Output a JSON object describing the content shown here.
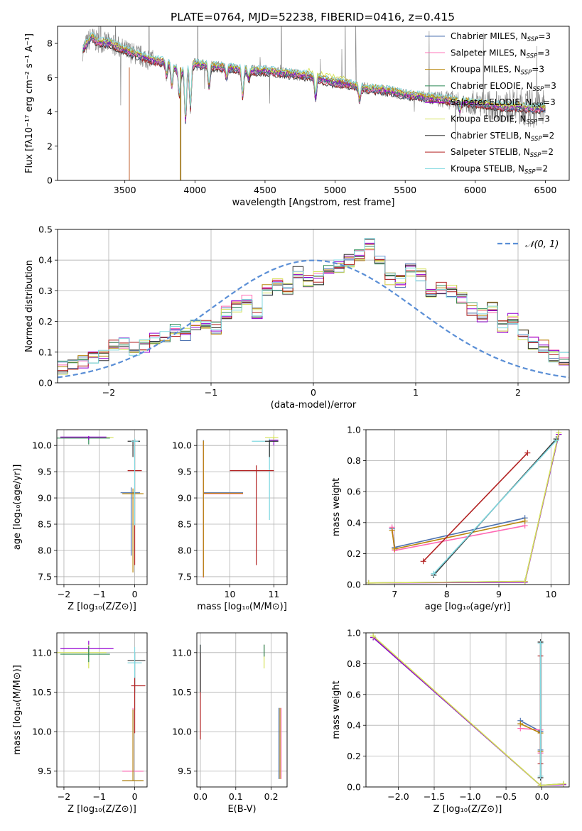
{
  "figure": {
    "title": "PLATE=0764, MJD=52238, FIBERID=0416, z=0.415"
  },
  "series_colors": {
    "chabrier_miles": "#4c72b0",
    "salpeter_miles": "#ff69b4",
    "kroupa_miles": "#b8860b",
    "chabrier_elodie": "#2e8b57",
    "salpeter_elodie": "#9400d3",
    "kroupa_elodie": "#d4e157",
    "chabrier_stelib": "#333333",
    "salpeter_stelib": "#b22222",
    "kroupa_stelib": "#80d8e0"
  },
  "chart_data": [
    {
      "id": "spectrum",
      "type": "line",
      "xlabel": "wavelength [Angstrom, rest frame]",
      "ylabel": "Flux [fλ10⁻¹⁷ erg cm⁻² s⁻¹ A⁻¹]",
      "xlim": [
        3020,
        6670
      ],
      "ylim": [
        0,
        9
      ],
      "xticks": [
        3500,
        4000,
        4500,
        5000,
        5500,
        6000,
        6500
      ],
      "yticks": [
        0,
        2,
        4,
        6,
        8
      ],
      "grid": false,
      "legend_position": "top-right",
      "legend": [
        {
          "label": "Chabrier MILES, N_SSP=3",
          "main": "Chabrier MILES, N",
          "sub": "SSP",
          "tail": "=3",
          "color": "#4c72b0"
        },
        {
          "label": "Salpeter MILES, N_SSP=3",
          "main": "Salpeter MILES, N",
          "sub": "SSP",
          "tail": "=3",
          "color": "#ff69b4"
        },
        {
          "label": "Kroupa MILES, N_SSP=3",
          "main": "Kroupa MILES, N",
          "sub": "SSP",
          "tail": "=3",
          "color": "#b8860b"
        },
        {
          "label": "Chabrier ELODIE, N_SSP=3",
          "main": "Chabrier ELODIE, N",
          "sub": "SSP",
          "tail": "=3",
          "color": "#2e8b57"
        },
        {
          "label": "Salpeter ELODIE, N_SSP=3",
          "main": "Salpeter ELODIE, N",
          "sub": "SSP",
          "tail": "=3",
          "color": "#9400d3"
        },
        {
          "label": "Kroupa ELODIE, N_SSP=3",
          "main": "Kroupa ELODIE, N",
          "sub": "SSP",
          "tail": "=3",
          "color": "#d4e157"
        },
        {
          "label": "Chabrier STELIB, N_SSP=2",
          "main": "Chabrier STELIB, N",
          "sub": "SSP",
          "tail": "=2",
          "color": "#333333"
        },
        {
          "label": "Salpeter STELIB, N_SSP=2",
          "main": "Salpeter STELIB, N",
          "sub": "SSP",
          "tail": "=2",
          "color": "#b22222"
        },
        {
          "label": "Kroupa STELIB, N_SSP=2",
          "main": "Kroupa STELIB, N",
          "sub": "SSP",
          "tail": "=2",
          "color": "#80d8e0"
        }
      ],
      "data_envelope": {
        "x": [
          3200,
          3260,
          3300,
          3400,
          3500,
          3600,
          3700,
          3800,
          3900,
          4000,
          4100,
          4200,
          4300,
          4400,
          4500,
          4600,
          4700,
          4800,
          4900,
          5000,
          5100,
          5200,
          5300,
          5400,
          5500,
          5600,
          5700,
          5800,
          5900,
          6000,
          6100,
          6200,
          6300,
          6400,
          6500
        ],
        "y": [
          7.6,
          8.4,
          8.1,
          8.0,
          7.6,
          7.3,
          7.0,
          6.9,
          6.3,
          6.8,
          6.7,
          6.6,
          6.5,
          6.4,
          6.4,
          6.3,
          6.2,
          6.1,
          5.9,
          5.7,
          5.6,
          5.4,
          5.3,
          5.2,
          5.0,
          4.9,
          4.8,
          4.7,
          4.6,
          4.5,
          4.4,
          4.3,
          4.3,
          4.2,
          4.2
        ]
      }
    },
    {
      "id": "residuals",
      "type": "line",
      "xlabel": "(data-model)/error",
      "ylabel": "Normed distribution",
      "xlim": [
        -2.5,
        2.5
      ],
      "ylim": [
        0,
        0.5
      ],
      "xticks": [
        -2,
        -1,
        0,
        1,
        2
      ],
      "yticks": [
        0.0,
        0.1,
        0.2,
        0.3,
        0.4,
        0.5
      ],
      "grid": true,
      "legend_position": "top-right",
      "legend": [
        {
          "label": "𝒩(0, 1)",
          "color": "#5b8fd6",
          "style": "dashed"
        }
      ],
      "reference_curve": {
        "name": "𝒩(0, 1)",
        "mean": 0,
        "sigma": 1
      },
      "histogram_bins": {
        "start": -2.5,
        "width": 0.1,
        "count": 50
      },
      "histogram_base": [
        0.05,
        0.06,
        0.07,
        0.08,
        0.09,
        0.12,
        0.13,
        0.11,
        0.12,
        0.14,
        0.15,
        0.17,
        0.16,
        0.19,
        0.2,
        0.18,
        0.23,
        0.25,
        0.27,
        0.23,
        0.3,
        0.32,
        0.31,
        0.36,
        0.33,
        0.34,
        0.37,
        0.38,
        0.4,
        0.42,
        0.45,
        0.4,
        0.34,
        0.33,
        0.37,
        0.35,
        0.29,
        0.31,
        0.3,
        0.28,
        0.24,
        0.22,
        0.25,
        0.18,
        0.21,
        0.16,
        0.13,
        0.12,
        0.09,
        0.08
      ]
    },
    {
      "id": "age-vs-Z",
      "type": "scatter",
      "xlabel": "Z [log₁₀(Z/Z⊙)]",
      "ylabel": "age  [log₁₀(age/yr)]",
      "xlim": [
        -2.2,
        0.35
      ],
      "ylim": [
        7.35,
        10.3
      ],
      "xticks": [
        -2,
        -1,
        0
      ],
      "yticks": [
        7.5,
        8.0,
        8.5,
        9.0,
        9.5,
        10.0
      ],
      "grid": true,
      "points": [
        {
          "x": -1.3,
          "y": 10.15,
          "xerr": [
            0.8,
            0.7
          ],
          "yerr": [
            0.05,
            0.02
          ],
          "series": "kroupa_elodie"
        },
        {
          "x": -1.3,
          "y": 10.14,
          "xerr": [
            0.9,
            0.6
          ],
          "yerr": [
            0.12,
            0.02
          ],
          "series": "chabrier_elodie"
        },
        {
          "x": -1.3,
          "y": 10.16,
          "xerr": [
            0.8,
            0.5
          ],
          "yerr": [
            0.05,
            0.02
          ],
          "series": "salpeter_elodie"
        },
        {
          "x": -0.05,
          "y": 10.08,
          "xerr": [
            0.15,
            0.2
          ],
          "yerr": [
            0.3,
            0.02
          ],
          "series": "chabrier_stelib"
        },
        {
          "x": 0.0,
          "y": 9.52,
          "xerr": [
            0.2,
            0.2
          ],
          "yerr": [
            1.8,
            0.6
          ],
          "series": "salpeter_stelib"
        },
        {
          "x": -0.1,
          "y": 9.1,
          "xerr": [
            0.3,
            0.25
          ],
          "yerr": [
            1.2,
            0.1
          ],
          "series": "chabrier_miles"
        },
        {
          "x": -0.05,
          "y": 9.08,
          "xerr": [
            0.3,
            0.3
          ],
          "yerr": [
            1.5,
            0.1
          ],
          "series": "kroupa_miles"
        },
        {
          "x": 0.0,
          "y": 10.08,
          "xerr": [
            0.1,
            0.1
          ],
          "yerr": [
            1.6,
            0.05
          ],
          "series": "kroupa_stelib"
        }
      ]
    },
    {
      "id": "age-vs-mass",
      "type": "scatter",
      "xlabel": "mass [log₁₀(M/M⊙)]",
      "xlim": [
        9.25,
        11.3
      ],
      "ylim": [
        7.35,
        10.3
      ],
      "xticks": [
        10,
        11
      ],
      "yticks": [
        7.5,
        8.0,
        8.5,
        9.0,
        9.5,
        10.0
      ],
      "grid": true,
      "points": [
        {
          "x": 9.4,
          "y": 9.1,
          "xerr": [
            0.0,
            0.9
          ],
          "yerr": [
            1.6,
            1.0
          ],
          "series": "chabrier_miles"
        },
        {
          "x": 9.4,
          "y": 9.08,
          "xerr": [
            0.0,
            0.9
          ],
          "yerr": [
            1.6,
            1.0
          ],
          "series": "salpeter_miles"
        },
        {
          "x": 9.4,
          "y": 9.09,
          "xerr": [
            0.0,
            0.9
          ],
          "yerr": [
            1.6,
            1.0
          ],
          "series": "kroupa_miles"
        },
        {
          "x": 10.9,
          "y": 10.08,
          "xerr": [
            0.4,
            0.2
          ],
          "yerr": [
            1.5,
            0.05
          ],
          "series": "kroupa_stelib"
        },
        {
          "x": 10.6,
          "y": 9.52,
          "xerr": [
            0.6,
            0.4
          ],
          "yerr": [
            1.8,
            0.1
          ],
          "series": "salpeter_stelib"
        },
        {
          "x": 11.0,
          "y": 10.1,
          "xerr": [
            0.1,
            0.1
          ],
          "yerr": [
            0.1,
            0.05
          ],
          "series": "salpeter_elodie"
        },
        {
          "x": 11.0,
          "y": 10.15,
          "xerr": [
            0.2,
            0.1
          ],
          "yerr": [
            0.05,
            0.05
          ],
          "series": "kroupa_elodie"
        },
        {
          "x": 10.9,
          "y": 10.08,
          "xerr": [
            0.1,
            0.2
          ],
          "yerr": [
            0.3,
            0.02
          ],
          "series": "chabrier_stelib"
        }
      ]
    },
    {
      "id": "massweight-vs-age",
      "type": "line",
      "xlabel": "age  [log₁₀(age/yr)]",
      "ylabel": "mass weight",
      "xlim": [
        6.45,
        10.35
      ],
      "ylim": [
        0,
        1
      ],
      "xticks": [
        6,
        7,
        8,
        9,
        10
      ],
      "yticks": [
        0.0,
        0.2,
        0.4,
        0.6,
        0.8,
        1.0
      ],
      "grid": true,
      "series": [
        {
          "key": "chabrier_miles",
          "x": [
            6.95,
            7.0,
            9.5
          ],
          "y": [
            0.36,
            0.24,
            0.43
          ]
        },
        {
          "key": "salpeter_miles",
          "x": [
            6.95,
            7.0,
            9.5
          ],
          "y": [
            0.37,
            0.22,
            0.38
          ]
        },
        {
          "key": "kroupa_miles",
          "x": [
            6.95,
            7.0,
            9.5
          ],
          "y": [
            0.35,
            0.23,
            0.41
          ]
        },
        {
          "key": "chabrier_elodie",
          "x": [
            6.5,
            9.5,
            10.15
          ],
          "y": [
            0.01,
            0.02,
            0.97
          ]
        },
        {
          "key": "salpeter_elodie",
          "x": [
            6.5,
            9.5,
            10.15
          ],
          "y": [
            0.01,
            0.015,
            0.97
          ]
        },
        {
          "key": "kroupa_elodie",
          "x": [
            6.5,
            9.5,
            10.15
          ],
          "y": [
            0.01,
            0.02,
            0.98
          ]
        },
        {
          "key": "chabrier_stelib",
          "x": [
            7.75,
            10.1
          ],
          "y": [
            0.06,
            0.94
          ]
        },
        {
          "key": "salpeter_stelib",
          "x": [
            7.55,
            9.55
          ],
          "y": [
            0.15,
            0.85
          ]
        },
        {
          "key": "kroupa_stelib",
          "x": [
            7.75,
            10.1
          ],
          "y": [
            0.07,
            0.93
          ]
        }
      ]
    },
    {
      "id": "mass-vs-Z",
      "type": "scatter",
      "xlabel": "Z [log₁₀(Z/Z⊙)]",
      "ylabel": "mass [log₁₀(M/M⊙)]",
      "xlim": [
        -2.2,
        0.35
      ],
      "ylim": [
        9.3,
        11.25
      ],
      "xticks": [
        -2,
        -1,
        0
      ],
      "yticks": [
        9.5,
        10.0,
        10.5,
        11.0
      ],
      "grid": true,
      "points": [
        {
          "x": -1.3,
          "y": 11.05,
          "xerr": [
            0.8,
            0.7
          ],
          "yerr": [
            0.1,
            0.1
          ],
          "series": "salpeter_elodie"
        },
        {
          "x": -1.3,
          "y": 11.0,
          "xerr": [
            0.9,
            0.5
          ],
          "yerr": [
            0.2,
            0.1
          ],
          "series": "kroupa_elodie"
        },
        {
          "x": -1.3,
          "y": 10.98,
          "xerr": [
            0.8,
            0.6
          ],
          "yerr": [
            0.1,
            0.1
          ],
          "series": "chabrier_elodie"
        },
        {
          "x": 0.0,
          "y": 10.9,
          "xerr": [
            0.2,
            0.3
          ],
          "yerr": [
            0.4,
            0.1
          ],
          "series": "chabrier_stelib"
        },
        {
          "x": 0.0,
          "y": 10.87,
          "xerr": [
            0.2,
            0.2
          ],
          "yerr": [
            0.6,
            0.2
          ],
          "series": "kroupa_stelib"
        },
        {
          "x": 0.0,
          "y": 10.58,
          "xerr": [
            0.1,
            0.3
          ],
          "yerr": [
            0.6,
            0.1
          ],
          "series": "salpeter_stelib"
        },
        {
          "x": -0.05,
          "y": 9.5,
          "xerr": [
            0.3,
            0.3
          ],
          "yerr": [
            0.0,
            0.8
          ],
          "series": "salpeter_miles"
        },
        {
          "x": -0.05,
          "y": 9.38,
          "xerr": [
            0.3,
            0.3
          ],
          "yerr": [
            0.0,
            0.9
          ],
          "series": "chabrier_miles"
        },
        {
          "x": -0.05,
          "y": 9.38,
          "xerr": [
            0.3,
            0.3
          ],
          "yerr": [
            0.0,
            0.9
          ],
          "series": "kroupa_miles"
        }
      ]
    },
    {
      "id": "mass-vs-EBV",
      "type": "scatter",
      "xlabel": "E(B-V)",
      "xlim": [
        -0.01,
        0.245
      ],
      "ylim": [
        9.3,
        11.25
      ],
      "xticks": [
        0.0,
        0.1,
        0.2
      ],
      "yticks": [
        9.5,
        10.0,
        10.5,
        11.0
      ],
      "grid": true,
      "points": [
        {
          "x": 0.0,
          "y": 10.9,
          "xerr": [
            0,
            0
          ],
          "yerr": [
            0.5,
            0.2
          ],
          "series": "kroupa_stelib"
        },
        {
          "x": 0.0,
          "y": 10.6,
          "xerr": [
            0,
            0
          ],
          "yerr": [
            0.7,
            0.4
          ],
          "series": "salpeter_stelib"
        },
        {
          "x": 0.0,
          "y": 10.9,
          "xerr": [
            0,
            0
          ],
          "yerr": [
            0.4,
            0.2
          ],
          "series": "chabrier_stelib"
        },
        {
          "x": 0.18,
          "y": 11.05,
          "xerr": [
            0,
            0
          ],
          "yerr": [
            0.1,
            0.05
          ],
          "series": "salpeter_elodie"
        },
        {
          "x": 0.18,
          "y": 11.0,
          "xerr": [
            0,
            0
          ],
          "yerr": [
            0.2,
            0.1
          ],
          "series": "kroupa_elodie"
        },
        {
          "x": 0.18,
          "y": 11.05,
          "xerr": [
            0,
            0
          ],
          "yerr": [
            0.1,
            0.05
          ],
          "series": "chabrier_elodie"
        },
        {
          "x": 0.225,
          "y": 9.9,
          "xerr": [
            0,
            0
          ],
          "yerr": [
            0.5,
            0.4
          ],
          "series": "kroupa_miles"
        },
        {
          "x": 0.228,
          "y": 9.9,
          "xerr": [
            0,
            0
          ],
          "yerr": [
            0.5,
            0.4
          ],
          "series": "salpeter_miles"
        },
        {
          "x": 0.222,
          "y": 9.85,
          "xerr": [
            0,
            0
          ],
          "yerr": [
            0.45,
            0.45
          ],
          "series": "chabrier_miles"
        }
      ]
    },
    {
      "id": "massweight-vs-Z",
      "type": "line",
      "xlabel": "Z [log₁₀(Z/Z⊙)]",
      "ylabel": "mass weight",
      "xlim": [
        -2.45,
        0.38
      ],
      "ylim": [
        0,
        1
      ],
      "xticks": [
        -2.0,
        -1.5,
        -1.0,
        -0.5,
        0.0
      ],
      "yticks": [
        0.0,
        0.2,
        0.4,
        0.6,
        0.8,
        1.0
      ],
      "grid": true,
      "series": [
        {
          "key": "chabrier_miles",
          "x": [
            -0.3,
            -0.02,
            -0.02
          ],
          "y": [
            0.43,
            0.36,
            0.24
          ]
        },
        {
          "key": "salpeter_miles",
          "x": [
            -0.3,
            -0.02,
            -0.02
          ],
          "y": [
            0.38,
            0.37,
            0.22
          ]
        },
        {
          "key": "kroupa_miles",
          "x": [
            -0.3,
            -0.02,
            -0.02
          ],
          "y": [
            0.41,
            0.35,
            0.23
          ]
        },
        {
          "key": "chabrier_elodie",
          "x": [
            -2.35,
            -0.02,
            0.3
          ],
          "y": [
            0.97,
            0.01,
            0.02
          ]
        },
        {
          "key": "salpeter_elodie",
          "x": [
            -2.35,
            -0.02,
            0.3
          ],
          "y": [
            0.97,
            0.01,
            0.015
          ]
        },
        {
          "key": "kroupa_elodie",
          "x": [
            -2.35,
            -0.02,
            0.3
          ],
          "y": [
            0.98,
            0.01,
            0.02
          ]
        },
        {
          "key": "chabrier_stelib",
          "x": [
            -0.02,
            -0.02
          ],
          "y": [
            0.06,
            0.94
          ]
        },
        {
          "key": "salpeter_stelib",
          "x": [
            -0.02,
            -0.02
          ],
          "y": [
            0.15,
            0.85
          ]
        },
        {
          "key": "kroupa_stelib",
          "x": [
            -0.02,
            -0.02
          ],
          "y": [
            0.07,
            0.93
          ]
        }
      ]
    }
  ]
}
